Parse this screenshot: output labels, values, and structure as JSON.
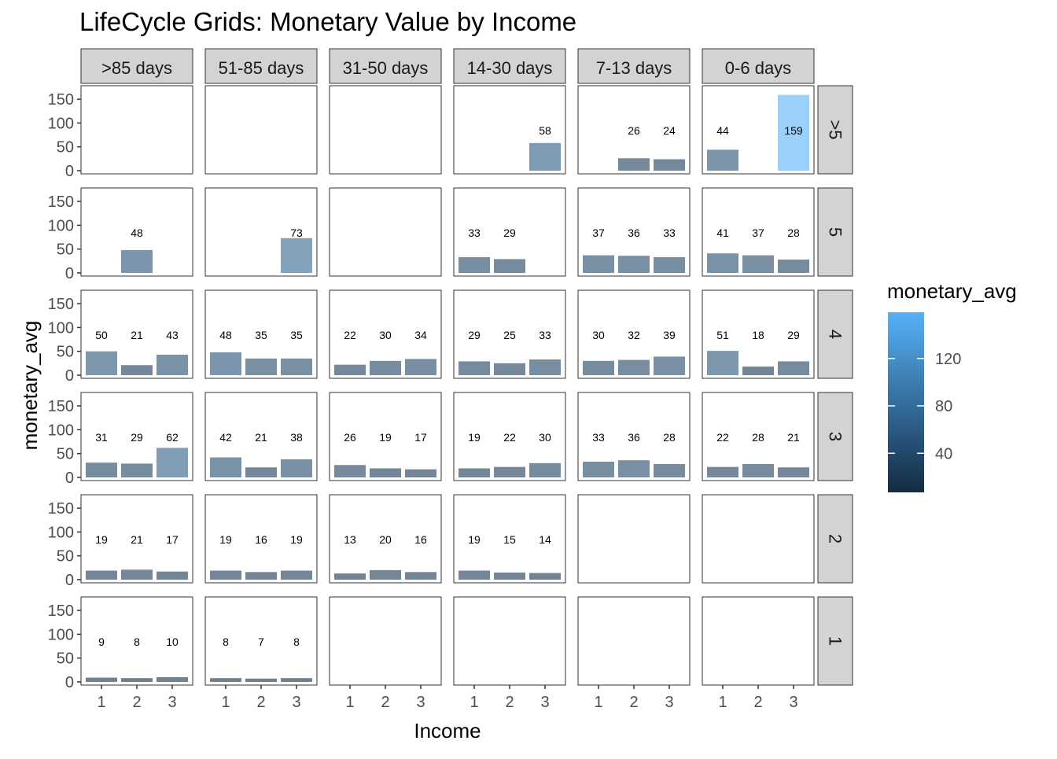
{
  "chart_data": {
    "type": "bar",
    "title": "LifeCycle Grids: Monetary Value by Income",
    "xlabel": "Income",
    "ylabel": "monetary_avg",
    "x_categories": [
      "1",
      "2",
      "3"
    ],
    "y_ticks": [
      "0",
      "50",
      "100",
      "150"
    ],
    "ylim": [
      0,
      165
    ],
    "column_facets": [
      ">85 days",
      "51-85 days",
      "31-50 days",
      "14-30 days",
      "7-13 days",
      "0-6 days"
    ],
    "row_facets": [
      ">5",
      "5",
      "4",
      "3",
      "2",
      "1"
    ],
    "legend": {
      "title": "monetary_avg",
      "placement": "right",
      "ticks": [
        "40",
        "80",
        "120"
      ],
      "tick_values": [
        40,
        80,
        120
      ],
      "range": [
        7,
        159
      ],
      "colors": {
        "low": "#132b43",
        "high": "#56b1f7"
      }
    },
    "bar_opacity": 0.6,
    "grid": false,
    "cells": [
      {
        "row": ">5",
        "col": ">85 days",
        "values": [
          null,
          null,
          null
        ]
      },
      {
        "row": ">5",
        "col": "51-85 days",
        "values": [
          null,
          null,
          null
        ]
      },
      {
        "row": ">5",
        "col": "31-50 days",
        "values": [
          null,
          null,
          null
        ]
      },
      {
        "row": ">5",
        "col": "14-30 days",
        "values": [
          null,
          null,
          58
        ]
      },
      {
        "row": ">5",
        "col": "7-13 days",
        "values": [
          null,
          26,
          24
        ]
      },
      {
        "row": ">5",
        "col": "0-6 days",
        "values": [
          44,
          null,
          159
        ]
      },
      {
        "row": "5",
        "col": ">85 days",
        "values": [
          null,
          48,
          null
        ]
      },
      {
        "row": "5",
        "col": "51-85 days",
        "values": [
          null,
          null,
          73
        ]
      },
      {
        "row": "5",
        "col": "31-50 days",
        "values": [
          null,
          null,
          null
        ]
      },
      {
        "row": "5",
        "col": "14-30 days",
        "values": [
          33,
          29,
          null
        ]
      },
      {
        "row": "5",
        "col": "7-13 days",
        "values": [
          37,
          36,
          33
        ]
      },
      {
        "row": "5",
        "col": "0-6 days",
        "values": [
          41,
          37,
          28
        ]
      },
      {
        "row": "4",
        "col": ">85 days",
        "values": [
          50,
          21,
          43
        ]
      },
      {
        "row": "4",
        "col": "51-85 days",
        "values": [
          48,
          35,
          35
        ]
      },
      {
        "row": "4",
        "col": "31-50 days",
        "values": [
          22,
          30,
          34
        ]
      },
      {
        "row": "4",
        "col": "14-30 days",
        "values": [
          29,
          25,
          33
        ]
      },
      {
        "row": "4",
        "col": "7-13 days",
        "values": [
          30,
          32,
          39
        ]
      },
      {
        "row": "4",
        "col": "0-6 days",
        "values": [
          51,
          18,
          29
        ]
      },
      {
        "row": "3",
        "col": ">85 days",
        "values": [
          31,
          29,
          62
        ]
      },
      {
        "row": "3",
        "col": "51-85 days",
        "values": [
          42,
          21,
          38
        ]
      },
      {
        "row": "3",
        "col": "31-50 days",
        "values": [
          26,
          19,
          17
        ]
      },
      {
        "row": "3",
        "col": "14-30 days",
        "values": [
          19,
          22,
          30
        ]
      },
      {
        "row": "3",
        "col": "7-13 days",
        "values": [
          33,
          36,
          28
        ]
      },
      {
        "row": "3",
        "col": "0-6 days",
        "values": [
          22,
          28,
          21
        ]
      },
      {
        "row": "2",
        "col": ">85 days",
        "values": [
          19,
          21,
          17
        ]
      },
      {
        "row": "2",
        "col": "51-85 days",
        "values": [
          19,
          16,
          19
        ]
      },
      {
        "row": "2",
        "col": "31-50 days",
        "values": [
          13,
          20,
          16
        ]
      },
      {
        "row": "2",
        "col": "14-30 days",
        "values": [
          19,
          15,
          14
        ]
      },
      {
        "row": "2",
        "col": "7-13 days",
        "values": [
          null,
          null,
          null
        ]
      },
      {
        "row": "2",
        "col": "0-6 days",
        "values": [
          null,
          null,
          null
        ]
      },
      {
        "row": "1",
        "col": ">85 days",
        "values": [
          9,
          8,
          10
        ]
      },
      {
        "row": "1",
        "col": "51-85 days",
        "values": [
          8,
          7,
          8
        ]
      },
      {
        "row": "1",
        "col": "31-50 days",
        "values": [
          null,
          null,
          null
        ]
      },
      {
        "row": "1",
        "col": "14-30 days",
        "values": [
          null,
          null,
          null
        ]
      },
      {
        "row": "1",
        "col": "7-13 days",
        "values": [
          null,
          null,
          null
        ]
      },
      {
        "row": "1",
        "col": "0-6 days",
        "values": [
          null,
          null,
          null
        ]
      }
    ]
  }
}
